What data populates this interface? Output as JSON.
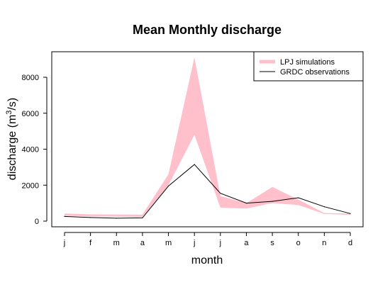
{
  "chart_data": {
    "type": "area",
    "title": "Mean Monthly discharge",
    "xlabel": "month",
    "ylabel_main": "discharge (m",
    "ylabel_sup": "3",
    "ylabel_end": "/s)",
    "categories": [
      "j",
      "f",
      "m",
      "a",
      "m",
      "j",
      "j",
      "a",
      "s",
      "o",
      "n",
      "d"
    ],
    "yticks": [
      0,
      2000,
      4000,
      6000,
      8000
    ],
    "ylim": [
      -300,
      9200
    ],
    "series": [
      {
        "name": "LPJ simulations",
        "kind": "band",
        "color": "#ffc0cb",
        "lower": [
          300,
          270,
          250,
          230,
          2000,
          4800,
          750,
          700,
          1000,
          900,
          400,
          350
        ],
        "upper": [
          420,
          380,
          370,
          360,
          2600,
          9100,
          1400,
          1000,
          1900,
          1200,
          450,
          420
        ]
      },
      {
        "name": "GRDC observations",
        "kind": "line",
        "color": "#000000",
        "values": [
          260,
          200,
          160,
          180,
          1950,
          3150,
          1550,
          1000,
          1100,
          1300,
          800,
          420
        ]
      }
    ],
    "legend_position": "top-right",
    "grid": false
  }
}
